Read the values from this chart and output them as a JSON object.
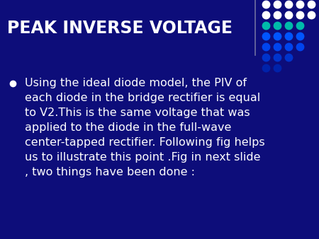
{
  "title": "PEAK INVERSE VOLTAGE",
  "title_color": "#FFFFFF",
  "title_fontsize": 17,
  "background_color": "#0D0D7A",
  "body_text": "Using the ideal diode model, the PIV of\neach diode in the bridge rectifier is equal\nto V2.This is the same voltage that was\napplied to the diode in the full-wave\ncenter-tapped rectifier. Following fig helps\nus to illustrate this point .Fig in next slide\n, two things have been done :",
  "body_fontsize": 11.5,
  "body_color": "#FFFFFF",
  "bullet_color": "#FFFFFF",
  "separator_color": "#8888AA",
  "dot_rows": [
    {
      "n": 5,
      "color": "#FFFFFF"
    },
    {
      "n": 5,
      "color": "#FFFFFF"
    },
    {
      "n": 4,
      "color": "#00BBAA"
    },
    {
      "n": 4,
      "color": "#0055FF"
    },
    {
      "n": 4,
      "color": "#0044EE"
    },
    {
      "n": 3,
      "color": "#0033CC"
    },
    {
      "n": 2,
      "color": "#0022AA"
    }
  ]
}
